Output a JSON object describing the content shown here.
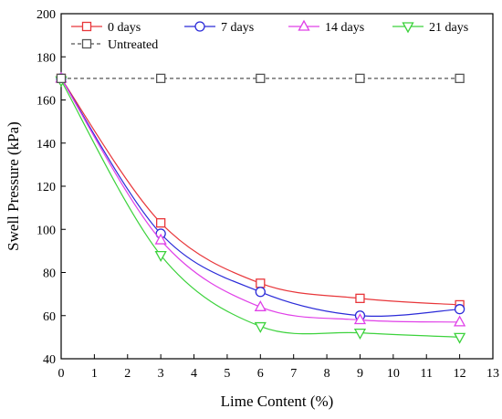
{
  "chart_data": {
    "type": "line",
    "xlabel": "Lime Content (%)",
    "ylabel": "Swell Pressure (kPa)",
    "xlim": [
      0,
      13
    ],
    "ylim": [
      40,
      200
    ],
    "xticks": [
      0,
      1,
      2,
      3,
      4,
      5,
      6,
      7,
      8,
      9,
      10,
      11,
      12,
      13
    ],
    "yticks": [
      40,
      60,
      80,
      100,
      120,
      140,
      160,
      180,
      200
    ],
    "grid": false,
    "legend_position": "top",
    "series": [
      {
        "name": "0 days",
        "marker": "square",
        "color": "#e8363a",
        "line": "solid",
        "x": [
          0,
          3,
          6,
          9,
          12
        ],
        "y": [
          170,
          103,
          75,
          68,
          65
        ]
      },
      {
        "name": "7 days",
        "marker": "circle",
        "color": "#2a2ad8",
        "line": "solid",
        "x": [
          0,
          3,
          6,
          9,
          12
        ],
        "y": [
          170,
          98,
          71,
          60,
          63
        ]
      },
      {
        "name": "14 days",
        "marker": "triangle-up",
        "color": "#e040e8",
        "line": "solid",
        "x": [
          0,
          3,
          6,
          9,
          12
        ],
        "y": [
          170,
          95,
          64,
          58,
          57
        ]
      },
      {
        "name": "21 days",
        "marker": "triangle-down",
        "color": "#3cd23c",
        "line": "solid",
        "x": [
          0,
          3,
          6,
          9,
          12
        ],
        "y": [
          169,
          88,
          55,
          52,
          50
        ]
      },
      {
        "name": "Untreated",
        "marker": "square",
        "color": "#555555",
        "line": "dashed",
        "x": [
          0,
          3,
          6,
          9,
          12
        ],
        "y": [
          170,
          170,
          170,
          170,
          170
        ]
      }
    ]
  }
}
